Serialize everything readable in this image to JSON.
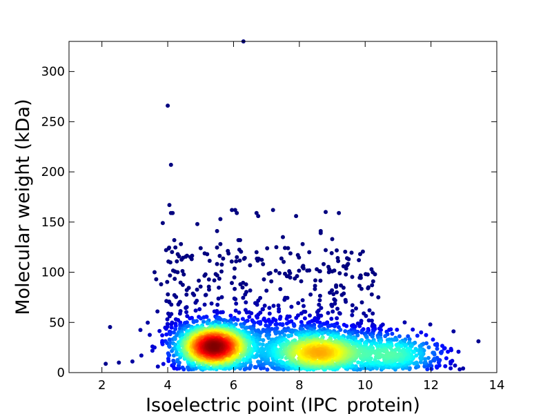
{
  "chart_data": {
    "type": "scatter",
    "title": "",
    "xlabel": "Isoelectric point (IPC_protein)",
    "ylabel": "Molecular weight (kDa)",
    "xlim": [
      1,
      14
    ],
    "ylim": [
      0,
      330
    ],
    "xticks": [
      2,
      4,
      6,
      8,
      10,
      12,
      14
    ],
    "yticks": [
      0,
      50,
      100,
      150,
      200,
      250,
      300
    ],
    "grid": false,
    "legend": "none",
    "color_encoding": "point density (jet colormap: blue = low, red = high)",
    "colormap": [
      "#00007f",
      "#0000ff",
      "#0080ff",
      "#00ffff",
      "#80ff80",
      "#ffff00",
      "#ff8000",
      "#ff0000",
      "#7f0000"
    ],
    "density_clusters": [
      {
        "x": 5.4,
        "y": 26,
        "sx": 0.55,
        "sy": 11,
        "weight": 0.42
      },
      {
        "x": 8.6,
        "y": 20,
        "sx": 0.75,
        "sy": 11,
        "weight": 0.3
      },
      {
        "x": 6.8,
        "y": 25,
        "sx": 1.5,
        "sy": 17,
        "weight": 0.13
      },
      {
        "x": 10.8,
        "y": 18,
        "sx": 0.8,
        "sy": 11,
        "weight": 0.15
      }
    ],
    "outliers": [
      {
        "x": 6.3,
        "y": 330
      },
      {
        "x": 4.0,
        "y": 266
      },
      {
        "x": 4.1,
        "y": 207
      },
      {
        "x": 4.05,
        "y": 167
      },
      {
        "x": 4.1,
        "y": 159
      },
      {
        "x": 4.15,
        "y": 159
      },
      {
        "x": 5.95,
        "y": 162
      },
      {
        "x": 6.05,
        "y": 162
      },
      {
        "x": 6.1,
        "y": 159
      },
      {
        "x": 6.7,
        "y": 159
      },
      {
        "x": 6.75,
        "y": 156
      },
      {
        "x": 7.2,
        "y": 162
      },
      {
        "x": 7.9,
        "y": 156
      },
      {
        "x": 8.8,
        "y": 160
      },
      {
        "x": 9.2,
        "y": 159
      },
      {
        "x": 3.85,
        "y": 149
      },
      {
        "x": 4.9,
        "y": 148
      },
      {
        "x": 5.6,
        "y": 153
      },
      {
        "x": 4.2,
        "y": 132
      },
      {
        "x": 4.4,
        "y": 128
      },
      {
        "x": 3.95,
        "y": 122
      },
      {
        "x": 6.15,
        "y": 132
      },
      {
        "x": 6.2,
        "y": 132
      },
      {
        "x": 8.65,
        "y": 141
      },
      {
        "x": 8.65,
        "y": 139
      },
      {
        "x": 5.5,
        "y": 141
      },
      {
        "x": 5.6,
        "y": 128
      },
      {
        "x": 6.7,
        "y": 120
      },
      {
        "x": 7.5,
        "y": 135
      },
      {
        "x": 8.1,
        "y": 128
      },
      {
        "x": 9.0,
        "y": 133
      },
      {
        "x": 9.45,
        "y": 114
      },
      {
        "x": 9.5,
        "y": 113
      },
      {
        "x": 3.6,
        "y": 100
      },
      {
        "x": 3.65,
        "y": 93
      },
      {
        "x": 3.8,
        "y": 88
      },
      {
        "x": 4.3,
        "y": 100
      },
      {
        "x": 10.3,
        "y": 98
      },
      {
        "x": 10.1,
        "y": 85
      },
      {
        "x": 5.0,
        "y": 124
      },
      {
        "x": 5.2,
        "y": 118
      },
      {
        "x": 7.3,
        "y": 125
      },
      {
        "x": 8.3,
        "y": 120
      },
      {
        "x": 8.8,
        "y": 122
      },
      {
        "x": 9.9,
        "y": 70
      },
      {
        "x": 10.4,
        "y": 75
      },
      {
        "x": 11.2,
        "y": 50
      },
      {
        "x": 11.7,
        "y": 40
      },
      {
        "x": 12.3,
        "y": 20
      },
      {
        "x": 12.6,
        "y": 9
      },
      {
        "x": 3.2,
        "y": 17
      },
      {
        "x": 3.6,
        "y": 25
      },
      {
        "x": 3.7,
        "y": 6
      },
      {
        "x": 12.1,
        "y": 12
      }
    ],
    "scatter_band": {
      "x_range": [
        3.9,
        10.3
      ],
      "y_range": [
        40,
        125
      ],
      "count": 420
    },
    "total_points_estimate": 3200
  }
}
